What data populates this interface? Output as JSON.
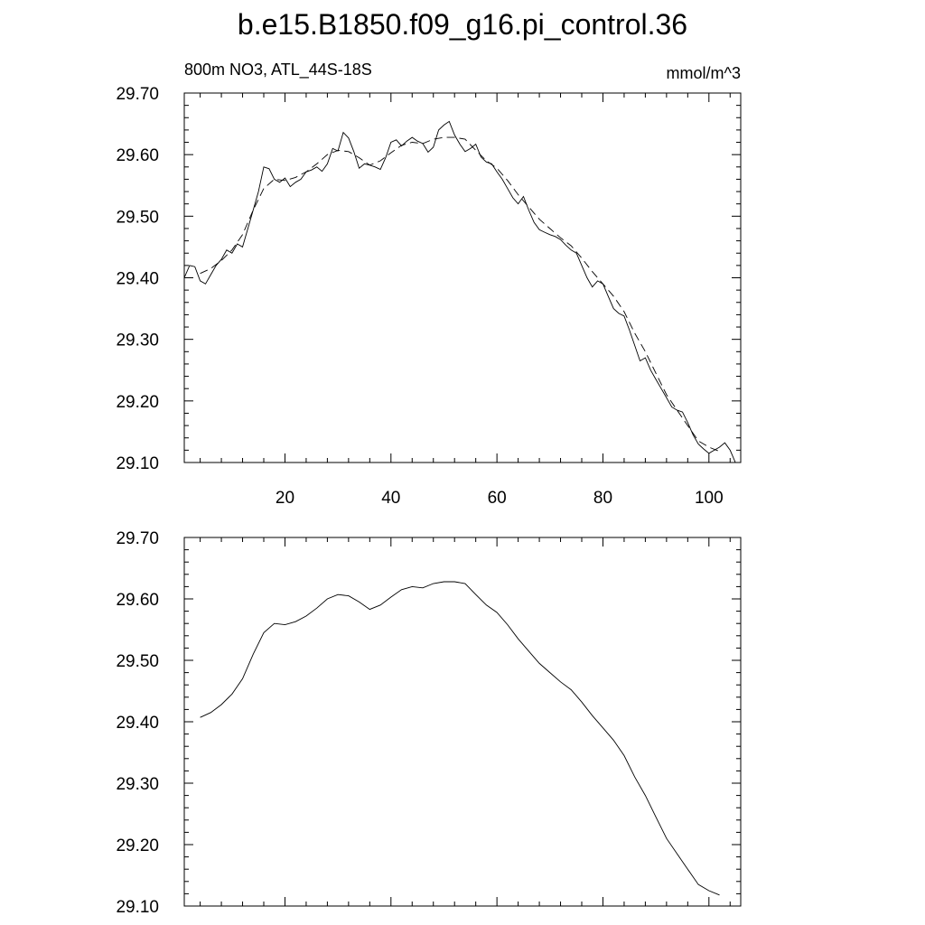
{
  "title": "b.e15.B1850.f09_g16.pi_control.36",
  "chart_data": [
    {
      "type": "line",
      "left_label": "800m NO3, ATL_44S-18S",
      "right_label": "mmol/m^3",
      "xlim": [
        1,
        106
      ],
      "ylim": [
        29.1,
        29.7
      ],
      "yticks": [
        "29.10",
        "29.20",
        "29.30",
        "29.40",
        "29.50",
        "29.60",
        "29.70"
      ],
      "xticks": [
        "20",
        "40",
        "60",
        "80",
        "100"
      ],
      "series": [
        {
          "style": "solid",
          "x": [
            1,
            2,
            3,
            4,
            5,
            6,
            7,
            8,
            9,
            10,
            11,
            12,
            13,
            14,
            15,
            16,
            17,
            18,
            19,
            20,
            21,
            22,
            23,
            24,
            25,
            26,
            27,
            28,
            29,
            30,
            31,
            32,
            33,
            34,
            35,
            36,
            37,
            38,
            39,
            40,
            41,
            42,
            43,
            44,
            45,
            46,
            47,
            48,
            49,
            50,
            51,
            52,
            53,
            54,
            55,
            56,
            57,
            58,
            59,
            60,
            61,
            62,
            63,
            64,
            65,
            66,
            67,
            68,
            69,
            70,
            71,
            72,
            73,
            74,
            75,
            76,
            77,
            78,
            79,
            80,
            81,
            82,
            83,
            84,
            85,
            86,
            87,
            88,
            89,
            90,
            91,
            92,
            93,
            94,
            95,
            96,
            97,
            98,
            99,
            100,
            101,
            102,
            103,
            104,
            105,
            106
          ],
          "y": [
            29.4,
            29.42,
            29.418,
            29.395,
            29.39,
            29.405,
            29.42,
            29.43,
            29.445,
            29.44,
            29.455,
            29.45,
            29.48,
            29.51,
            29.54,
            29.58,
            29.577,
            29.56,
            29.555,
            29.562,
            29.548,
            29.555,
            29.56,
            29.572,
            29.575,
            29.58,
            29.573,
            29.585,
            29.61,
            29.606,
            29.636,
            29.627,
            29.605,
            29.578,
            29.585,
            29.583,
            29.58,
            29.576,
            29.595,
            29.62,
            29.624,
            29.614,
            29.622,
            29.628,
            29.622,
            29.618,
            29.604,
            29.612,
            29.64,
            29.648,
            29.654,
            29.632,
            29.617,
            29.605,
            29.61,
            29.617,
            29.596,
            29.588,
            29.585,
            29.572,
            29.56,
            29.545,
            29.53,
            29.52,
            29.532,
            29.51,
            29.49,
            29.478,
            29.474,
            29.47,
            29.467,
            29.462,
            29.453,
            29.445,
            29.44,
            29.42,
            29.4,
            29.385,
            29.395,
            29.39,
            29.37,
            29.35,
            29.342,
            29.338,
            29.315,
            29.29,
            29.265,
            29.27,
            29.25,
            29.235,
            29.22,
            29.205,
            29.19,
            29.185,
            29.182,
            29.165,
            29.145,
            29.13,
            29.122,
            29.115,
            29.12,
            29.125,
            29.132,
            29.12,
            29.1,
            29.1
          ]
        },
        {
          "style": "dashed",
          "x": [
            4,
            6,
            8,
            10,
            12,
            14,
            16,
            18,
            20,
            22,
            24,
            26,
            28,
            30,
            32,
            34,
            36,
            38,
            40,
            42,
            44,
            46,
            48,
            50,
            52,
            54,
            56,
            58,
            60,
            62,
            64,
            66,
            68,
            70,
            72,
            74,
            76,
            78,
            80,
            82,
            84,
            86,
            88,
            90,
            92,
            94,
            96,
            98,
            100,
            102
          ],
          "y": [
            29.407,
            29.415,
            29.428,
            29.445,
            29.47,
            29.51,
            29.545,
            29.56,
            29.558,
            29.563,
            29.572,
            29.585,
            29.6,
            29.607,
            29.605,
            29.595,
            29.583,
            29.59,
            29.603,
            29.615,
            29.62,
            29.618,
            29.625,
            29.628,
            29.628,
            29.625,
            29.607,
            29.59,
            29.578,
            29.558,
            29.535,
            29.515,
            29.495,
            29.48,
            29.465,
            29.452,
            29.432,
            29.41,
            29.39,
            29.37,
            29.345,
            29.31,
            29.28,
            29.245,
            29.21,
            29.185,
            29.16,
            29.135,
            29.125,
            29.118
          ]
        }
      ]
    },
    {
      "type": "line",
      "xlim": [
        1,
        106
      ],
      "ylim": [
        29.1,
        29.7
      ],
      "yticks": [
        "29.10",
        "29.20",
        "29.30",
        "29.40",
        "29.50",
        "29.60",
        "29.70"
      ],
      "series": [
        {
          "style": "solid",
          "x": [
            4,
            6,
            8,
            10,
            12,
            14,
            16,
            18,
            20,
            22,
            24,
            26,
            28,
            30,
            32,
            34,
            36,
            38,
            40,
            42,
            44,
            46,
            48,
            50,
            52,
            54,
            56,
            58,
            60,
            62,
            64,
            66,
            68,
            70,
            72,
            74,
            76,
            78,
            80,
            82,
            84,
            86,
            88,
            90,
            92,
            94,
            96,
            98,
            100,
            102
          ],
          "y": [
            29.407,
            29.415,
            29.428,
            29.445,
            29.47,
            29.51,
            29.545,
            29.56,
            29.558,
            29.563,
            29.572,
            29.585,
            29.6,
            29.607,
            29.605,
            29.595,
            29.583,
            29.59,
            29.603,
            29.615,
            29.62,
            29.618,
            29.625,
            29.628,
            29.628,
            29.625,
            29.607,
            29.59,
            29.578,
            29.558,
            29.535,
            29.515,
            29.495,
            29.48,
            29.465,
            29.452,
            29.432,
            29.41,
            29.39,
            29.37,
            29.345,
            29.31,
            29.28,
            29.245,
            29.21,
            29.185,
            29.16,
            29.135,
            29.125,
            29.118
          ]
        }
      ]
    }
  ]
}
